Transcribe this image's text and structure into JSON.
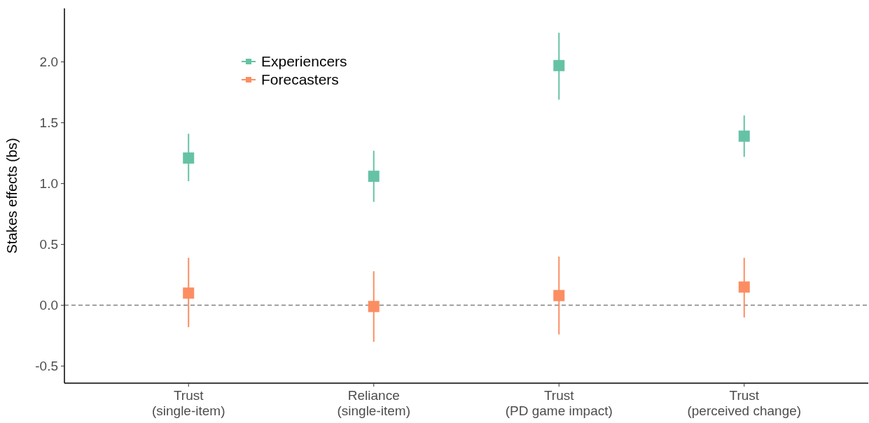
{
  "chart_data": {
    "type": "scatter",
    "ylabel": "Stakes effects (bs)",
    "categories": [
      "Trust\n(single-item)",
      "Reliance\n(single-item)",
      "Trust\n(PD game impact)",
      "Trust\n(perceived change)"
    ],
    "ylim": [
      -0.64,
      2.44
    ],
    "yticks": [
      {
        "value": -0.5,
        "label": "-0.5"
      },
      {
        "value": 0,
        "label": "0.0"
      },
      {
        "value": 0.5,
        "label": "0.5"
      },
      {
        "value": 1,
        "label": "1.0"
      },
      {
        "value": 1.5,
        "label": "1.5"
      },
      {
        "value": 2,
        "label": "2.0"
      }
    ],
    "marker": "square",
    "grid": false,
    "legend": "top left",
    "series": [
      {
        "name": "Experiencers",
        "color": "#66c2a5",
        "values": [
          1.21,
          1.06,
          1.97,
          1.39
        ],
        "errors": [
          [
            1.02,
            1.41
          ],
          [
            0.85,
            1.27
          ],
          [
            1.69,
            2.24
          ],
          [
            1.22,
            1.56
          ]
        ]
      },
      {
        "name": "Forecasters",
        "color": "#fc8d62",
        "values": [
          0.1,
          -0.01,
          0.08,
          0.15
        ],
        "errors": [
          [
            -0.18,
            0.39
          ],
          [
            -0.3,
            0.28
          ],
          [
            -0.24,
            0.4
          ],
          [
            -0.1,
            0.39
          ]
        ]
      }
    ],
    "ref_lines": [
      {
        "axis": "y",
        "value": 0,
        "color": "#808080",
        "line_style": "dashed"
      }
    ]
  }
}
